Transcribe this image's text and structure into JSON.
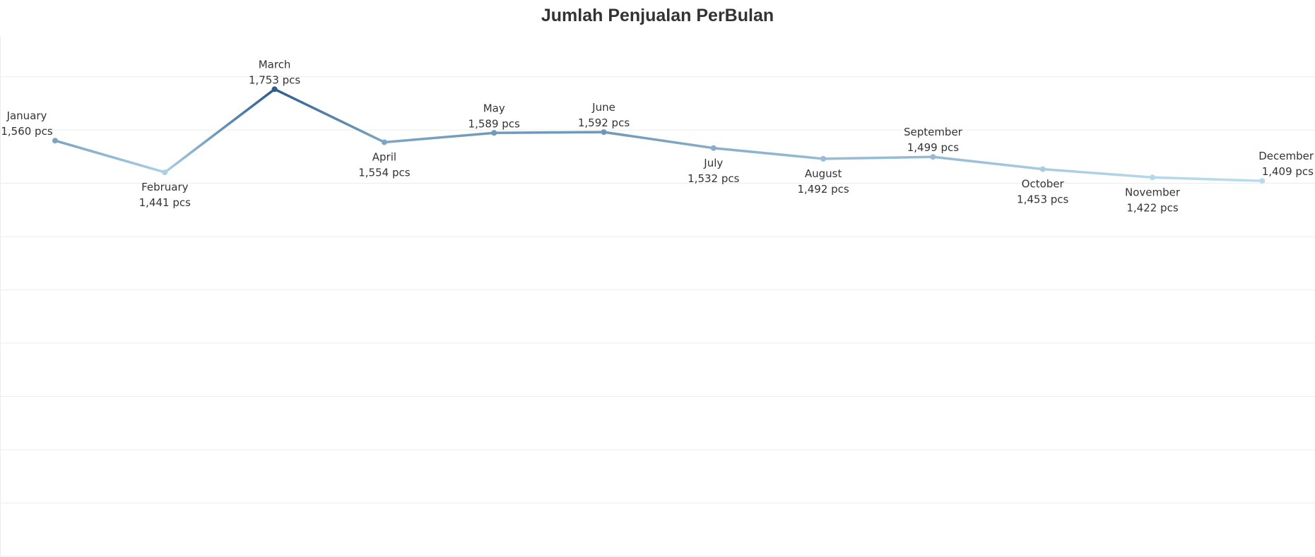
{
  "chart_data": {
    "type": "line",
    "title": "Jumlah Penjualan PerBulan",
    "xlabel": "",
    "ylabel": "",
    "unit": "pcs",
    "categories": [
      "January",
      "February",
      "March",
      "April",
      "May",
      "June",
      "July",
      "August",
      "September",
      "October",
      "November",
      "December"
    ],
    "values": [
      1560,
      1441,
      1753,
      1554,
      1589,
      1592,
      1532,
      1492,
      1499,
      1453,
      1422,
      1409
    ],
    "value_labels": [
      "1,560 pcs",
      "1,441 pcs",
      "1,753 pcs",
      "1,554 pcs",
      "1,589 pcs",
      "1,592 pcs",
      "1,532 pcs",
      "1,492 pcs",
      "1,499 pcs",
      "1,453 pcs",
      "1,422 pcs",
      "1,409 pcs"
    ],
    "label_placement": [
      "above",
      "below",
      "above",
      "below",
      "above",
      "above",
      "below",
      "below",
      "above",
      "below",
      "below",
      "above"
    ],
    "ylim": [
      0,
      1950
    ],
    "grid": true,
    "axes_visible": false,
    "color_range": [
      "#b9dced",
      "#2d5b8c"
    ]
  }
}
